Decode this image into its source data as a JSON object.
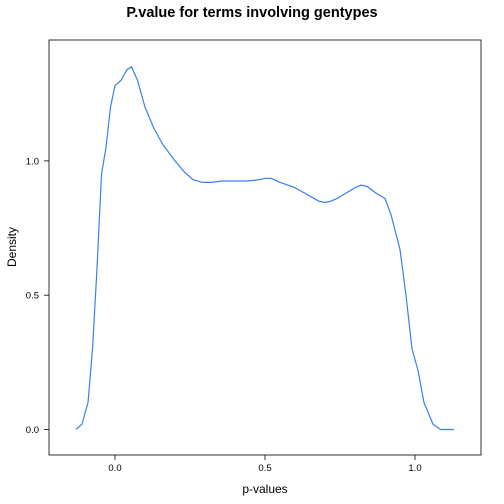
{
  "chart_data": {
    "type": "line",
    "title": "P.value for terms involving gentypes",
    "xlabel": "p-values",
    "ylabel": "Density",
    "xlim": [
      -0.22,
      1.22
    ],
    "ylim": [
      -0.095,
      1.45
    ],
    "grid": false,
    "x_ticks": [
      0.0,
      0.5,
      1.0
    ],
    "x_tick_labels": [
      "0.0",
      "0.5",
      "1.0"
    ],
    "y_ticks": [
      0.0,
      0.5,
      1.0
    ],
    "y_tick_labels": [
      "0.0",
      "0.5",
      "1.0"
    ],
    "series": [
      {
        "color": "#3a7ef0",
        "x": [
          -0.13,
          -0.11,
          -0.09,
          -0.075,
          -0.06,
          -0.045,
          -0.03,
          -0.015,
          0.0,
          0.02,
          0.04,
          0.055,
          0.075,
          0.1,
          0.13,
          0.16,
          0.2,
          0.23,
          0.26,
          0.29,
          0.32,
          0.36,
          0.4,
          0.44,
          0.48,
          0.5,
          0.52,
          0.55,
          0.6,
          0.64,
          0.68,
          0.7,
          0.72,
          0.74,
          0.77,
          0.8,
          0.82,
          0.84,
          0.87,
          0.9,
          0.92,
          0.95,
          0.97,
          0.99,
          1.01,
          1.03,
          1.06,
          1.085,
          1.11,
          1.13
        ],
        "y": [
          0.0,
          0.02,
          0.1,
          0.3,
          0.6,
          0.95,
          1.05,
          1.2,
          1.28,
          1.3,
          1.34,
          1.35,
          1.3,
          1.2,
          1.12,
          1.06,
          1.0,
          0.96,
          0.93,
          0.92,
          0.92,
          0.925,
          0.925,
          0.925,
          0.93,
          0.935,
          0.935,
          0.92,
          0.9,
          0.875,
          0.85,
          0.845,
          0.85,
          0.86,
          0.88,
          0.9,
          0.91,
          0.905,
          0.88,
          0.86,
          0.8,
          0.67,
          0.5,
          0.3,
          0.22,
          0.1,
          0.02,
          0.0,
          0.0,
          0.0
        ]
      }
    ]
  }
}
